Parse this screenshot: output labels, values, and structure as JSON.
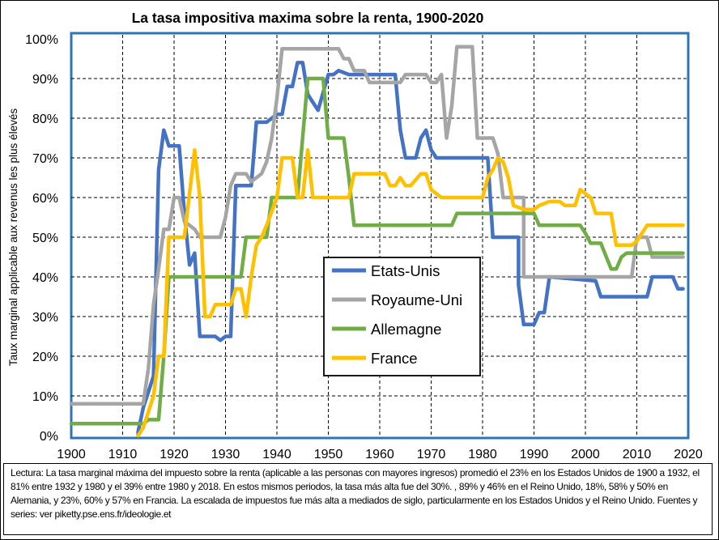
{
  "chart_data": {
    "type": "line",
    "title": "La tasa impositiva maxima sobre la renta, 1900-2020",
    "ylabel": "Taux marginal applicable aux revenus les plus élevés",
    "xlabel": "",
    "xlim": [
      1900,
      2020
    ],
    "ylim": [
      0,
      100
    ],
    "x_ticks": [
      1900,
      1910,
      1920,
      1930,
      1940,
      1950,
      1960,
      1970,
      1980,
      1990,
      2000,
      2010,
      2020
    ],
    "y_ticks": [
      "0%",
      "10%",
      "20%",
      "30%",
      "40%",
      "50%",
      "60%",
      "70%",
      "80%",
      "90%",
      "100%"
    ],
    "y_tick_values": [
      0,
      10,
      20,
      30,
      40,
      50,
      60,
      70,
      80,
      90,
      100
    ],
    "grid": true,
    "legend_position": "center-right",
    "series": [
      {
        "name": "Etats-Unis",
        "color": "#4472C4",
        "points": [
          [
            1913,
            0
          ],
          [
            1913,
            1
          ],
          [
            1914,
            7
          ],
          [
            1916,
            15
          ],
          [
            1917,
            67
          ],
          [
            1918,
            77
          ],
          [
            1919,
            73
          ],
          [
            1921,
            73
          ],
          [
            1922,
            56
          ],
          [
            1923,
            43
          ],
          [
            1924,
            46
          ],
          [
            1925,
            25
          ],
          [
            1928,
            25
          ],
          [
            1929,
            24
          ],
          [
            1930,
            25
          ],
          [
            1931,
            25
          ],
          [
            1932,
            63
          ],
          [
            1935,
            63
          ],
          [
            1936,
            79
          ],
          [
            1938,
            79
          ],
          [
            1940,
            81
          ],
          [
            1941,
            81
          ],
          [
            1942,
            88
          ],
          [
            1943,
            88
          ],
          [
            1944,
            94
          ],
          [
            1945,
            94
          ],
          [
            1946,
            86
          ],
          [
            1948,
            82
          ],
          [
            1950,
            91
          ],
          [
            1951,
            91
          ],
          [
            1952,
            92
          ],
          [
            1954,
            91
          ],
          [
            1963,
            91
          ],
          [
            1964,
            77
          ],
          [
            1965,
            70
          ],
          [
            1967,
            70
          ],
          [
            1968,
            75
          ],
          [
            1969,
            77
          ],
          [
            1970,
            72
          ],
          [
            1971,
            70
          ],
          [
            1981,
            70
          ],
          [
            1982,
            50
          ],
          [
            1987,
            50
          ],
          [
            1987,
            38
          ],
          [
            1988,
            28
          ],
          [
            1990,
            28
          ],
          [
            1991,
            31
          ],
          [
            1992,
            31
          ],
          [
            1993,
            40
          ],
          [
            2002,
            39
          ],
          [
            2003,
            35
          ],
          [
            2012,
            35
          ],
          [
            2013,
            40
          ],
          [
            2017,
            40
          ],
          [
            2018,
            37
          ],
          [
            2019,
            37
          ]
        ]
      },
      {
        "name": "Royaume-Uni",
        "color": "#A5A5A5",
        "points": [
          [
            1900,
            8
          ],
          [
            1908,
            8
          ],
          [
            1909,
            8
          ],
          [
            1909,
            8
          ],
          [
            1913,
            8
          ],
          [
            1914,
            8
          ],
          [
            1915,
            17
          ],
          [
            1916,
            33
          ],
          [
            1917,
            42
          ],
          [
            1918,
            52
          ],
          [
            1919,
            52
          ],
          [
            1920,
            60
          ],
          [
            1921,
            60
          ],
          [
            1922,
            54
          ],
          [
            1923,
            53
          ],
          [
            1924,
            52
          ],
          [
            1925,
            50
          ],
          [
            1929,
            50
          ],
          [
            1930,
            55
          ],
          [
            1931,
            63
          ],
          [
            1932,
            66
          ],
          [
            1934,
            66
          ],
          [
            1935,
            64
          ],
          [
            1937,
            66
          ],
          [
            1938,
            69
          ],
          [
            1939,
            75
          ],
          [
            1940,
            85
          ],
          [
            1941,
            97.5
          ],
          [
            1952,
            97.5
          ],
          [
            1953,
            95
          ],
          [
            1954,
            95
          ],
          [
            1955,
            92
          ],
          [
            1956,
            92
          ],
          [
            1957,
            92
          ],
          [
            1958,
            89
          ],
          [
            1964,
            89
          ],
          [
            1965,
            91
          ],
          [
            1969,
            91
          ],
          [
            1970,
            89
          ],
          [
            1971,
            89
          ],
          [
            1972,
            91
          ],
          [
            1973,
            75
          ],
          [
            1974,
            83
          ],
          [
            1975,
            98
          ],
          [
            1978,
            98
          ],
          [
            1979,
            75
          ],
          [
            1982,
            75
          ],
          [
            1983,
            71
          ],
          [
            1984,
            60
          ],
          [
            1988,
            60
          ],
          [
            1988,
            40
          ],
          [
            2009,
            40
          ],
          [
            2010,
            50
          ],
          [
            2012,
            50
          ],
          [
            2013,
            45
          ],
          [
            2019,
            45
          ]
        ]
      },
      {
        "name": "Allemagne",
        "color": "#70AD47",
        "points": [
          [
            1900,
            3
          ],
          [
            1913,
            3
          ],
          [
            1914,
            3
          ],
          [
            1915,
            4
          ],
          [
            1917,
            4
          ],
          [
            1918,
            20
          ],
          [
            1919,
            40
          ],
          [
            1933,
            40
          ],
          [
            1934,
            50
          ],
          [
            1938,
            50
          ],
          [
            1939,
            60
          ],
          [
            1944,
            60
          ],
          [
            1946,
            90
          ],
          [
            1949,
            90
          ],
          [
            1950,
            75
          ],
          [
            1953,
            75
          ],
          [
            1954,
            65
          ],
          [
            1955,
            53
          ],
          [
            1958,
            53
          ],
          [
            1974,
            53
          ],
          [
            1975,
            56
          ],
          [
            1990,
            56
          ],
          [
            1991,
            53
          ],
          [
            1999,
            53
          ],
          [
            2000,
            51
          ],
          [
            2001,
            48.5
          ],
          [
            2003,
            48.5
          ],
          [
            2005,
            42
          ],
          [
            2006,
            42
          ],
          [
            2007,
            45
          ],
          [
            2008,
            46
          ],
          [
            2019,
            46
          ]
        ]
      },
      {
        "name": "France",
        "color": "#FFC000",
        "points": [
          [
            1913,
            0
          ],
          [
            1914,
            2
          ],
          [
            1916,
            10
          ],
          [
            1917,
            20
          ],
          [
            1918,
            20
          ],
          [
            1919,
            50
          ],
          [
            1922,
            50
          ],
          [
            1924,
            72
          ],
          [
            1925,
            60
          ],
          [
            1926,
            30
          ],
          [
            1927,
            30
          ],
          [
            1928,
            33
          ],
          [
            1931,
            33
          ],
          [
            1932,
            37
          ],
          [
            1933,
            37
          ],
          [
            1934,
            30
          ],
          [
            1935,
            40
          ],
          [
            1936,
            48
          ],
          [
            1937,
            50
          ],
          [
            1938,
            53
          ],
          [
            1940,
            60
          ],
          [
            1941,
            70
          ],
          [
            1943,
            70
          ],
          [
            1944,
            60
          ],
          [
            1945,
            60
          ],
          [
            1946,
            72
          ],
          [
            1947,
            60
          ],
          [
            1954,
            60
          ],
          [
            1955,
            66
          ],
          [
            1961,
            66
          ],
          [
            1962,
            63
          ],
          [
            1963,
            63
          ],
          [
            1964,
            65
          ],
          [
            1965,
            63
          ],
          [
            1966,
            63
          ],
          [
            1968,
            66
          ],
          [
            1969,
            66
          ],
          [
            1970,
            62
          ],
          [
            1972,
            60
          ],
          [
            1980,
            60
          ],
          [
            1981,
            65
          ],
          [
            1982,
            67
          ],
          [
            1983,
            70
          ],
          [
            1984,
            69
          ],
          [
            1985,
            65
          ],
          [
            1986,
            58
          ],
          [
            1988,
            57
          ],
          [
            1990,
            57
          ],
          [
            1991,
            58
          ],
          [
            1993,
            59
          ],
          [
            1995,
            59
          ],
          [
            1996,
            58
          ],
          [
            1998,
            58
          ],
          [
            1999,
            62
          ],
          [
            2000,
            61
          ],
          [
            2001,
            60
          ],
          [
            2002,
            56
          ],
          [
            2005,
            56
          ],
          [
            2006,
            48
          ],
          [
            2009,
            48
          ],
          [
            2010,
            49
          ],
          [
            2012,
            53
          ],
          [
            2019,
            53
          ]
        ]
      }
    ]
  },
  "note": "Lectura: La tasa marginal máxima del impuesto sobre la renta (aplicable a las personas con mayores ingresos) promedió el 23% en los Estados Unidos de 1900 a 1932, el 81% entre 1932 y 1980 y el 39% entre 1980 y 2018. En estos mismos periodos, la tasa más alta fue del 30%. , 89% y 46% en el Reino Unido, 18%, 58% y 50% en Alemania, y 23%, 60% y 57% en Francia. La escalada de impuestos fue más alta a mediados de siglo, particularmente en los Estados Unidos y el Reino Unido. Fuentes y series: ver piketty.pse.ens.fr/ideologie.et"
}
